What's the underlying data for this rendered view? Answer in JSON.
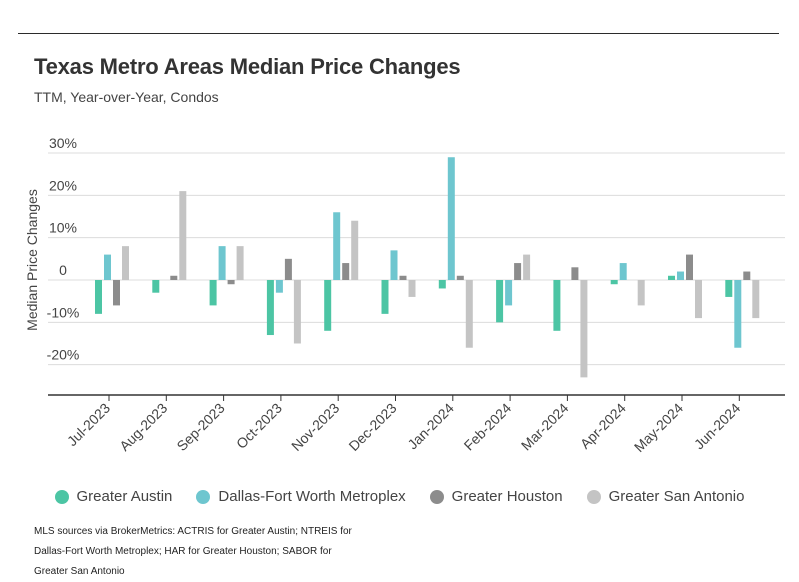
{
  "title": "Texas Metro Areas Median Price Changes",
  "subtitle": "TTM, Year-over-Year, Condos",
  "source": "MLS sources via BrokerMetrics: ACTRIS for Greater Austin; NTREIS for Dallas-Fort Worth Metroplex; HAR for Greater Houston; SABOR for Greater San Antonio",
  "chart_data": {
    "type": "bar",
    "title": "Texas Metro Areas Median Price Changes",
    "subtitle": "TTM, Year-over-Year, Condos",
    "ylabel": "Median Price Changes",
    "xlabel": "",
    "ylim": [
      -27,
      30
    ],
    "yticks": [
      30,
      20,
      10,
      0,
      -10,
      -20
    ],
    "ytick_labels": [
      "30%",
      "20%",
      "10%",
      "0",
      "-10%",
      "-20%"
    ],
    "grid": true,
    "legend_position": "bottom",
    "categories": [
      "Jul-2023",
      "Aug-2023",
      "Sep-2023",
      "Oct-2023",
      "Nov-2023",
      "Dec-2023",
      "Jan-2024",
      "Feb-2024",
      "Mar-2024",
      "Apr-2024",
      "May-2024",
      "Jun-2024"
    ],
    "series": [
      {
        "name": "Greater Austin",
        "color": "#4cc5a4",
        "values": [
          -8,
          -3,
          -6,
          -13,
          -12,
          -8,
          -2,
          -10,
          -12,
          -1,
          1,
          -4
        ]
      },
      {
        "name": "Dallas-Fort Worth Metroplex",
        "color": "#6ec6cf",
        "values": [
          6,
          0,
          8,
          -3,
          16,
          7,
          29,
          -6,
          0,
          4,
          2,
          -16
        ]
      },
      {
        "name": "Greater Houston",
        "color": "#8c8c8c",
        "values": [
          -6,
          1,
          -1,
          5,
          4,
          1,
          1,
          4,
          3,
          0,
          6,
          2
        ]
      },
      {
        "name": "Greater San Antonio",
        "color": "#c4c4c4",
        "values": [
          8,
          21,
          8,
          -15,
          14,
          -4,
          -16,
          6,
          -23,
          -6,
          -9,
          -9
        ]
      }
    ]
  }
}
